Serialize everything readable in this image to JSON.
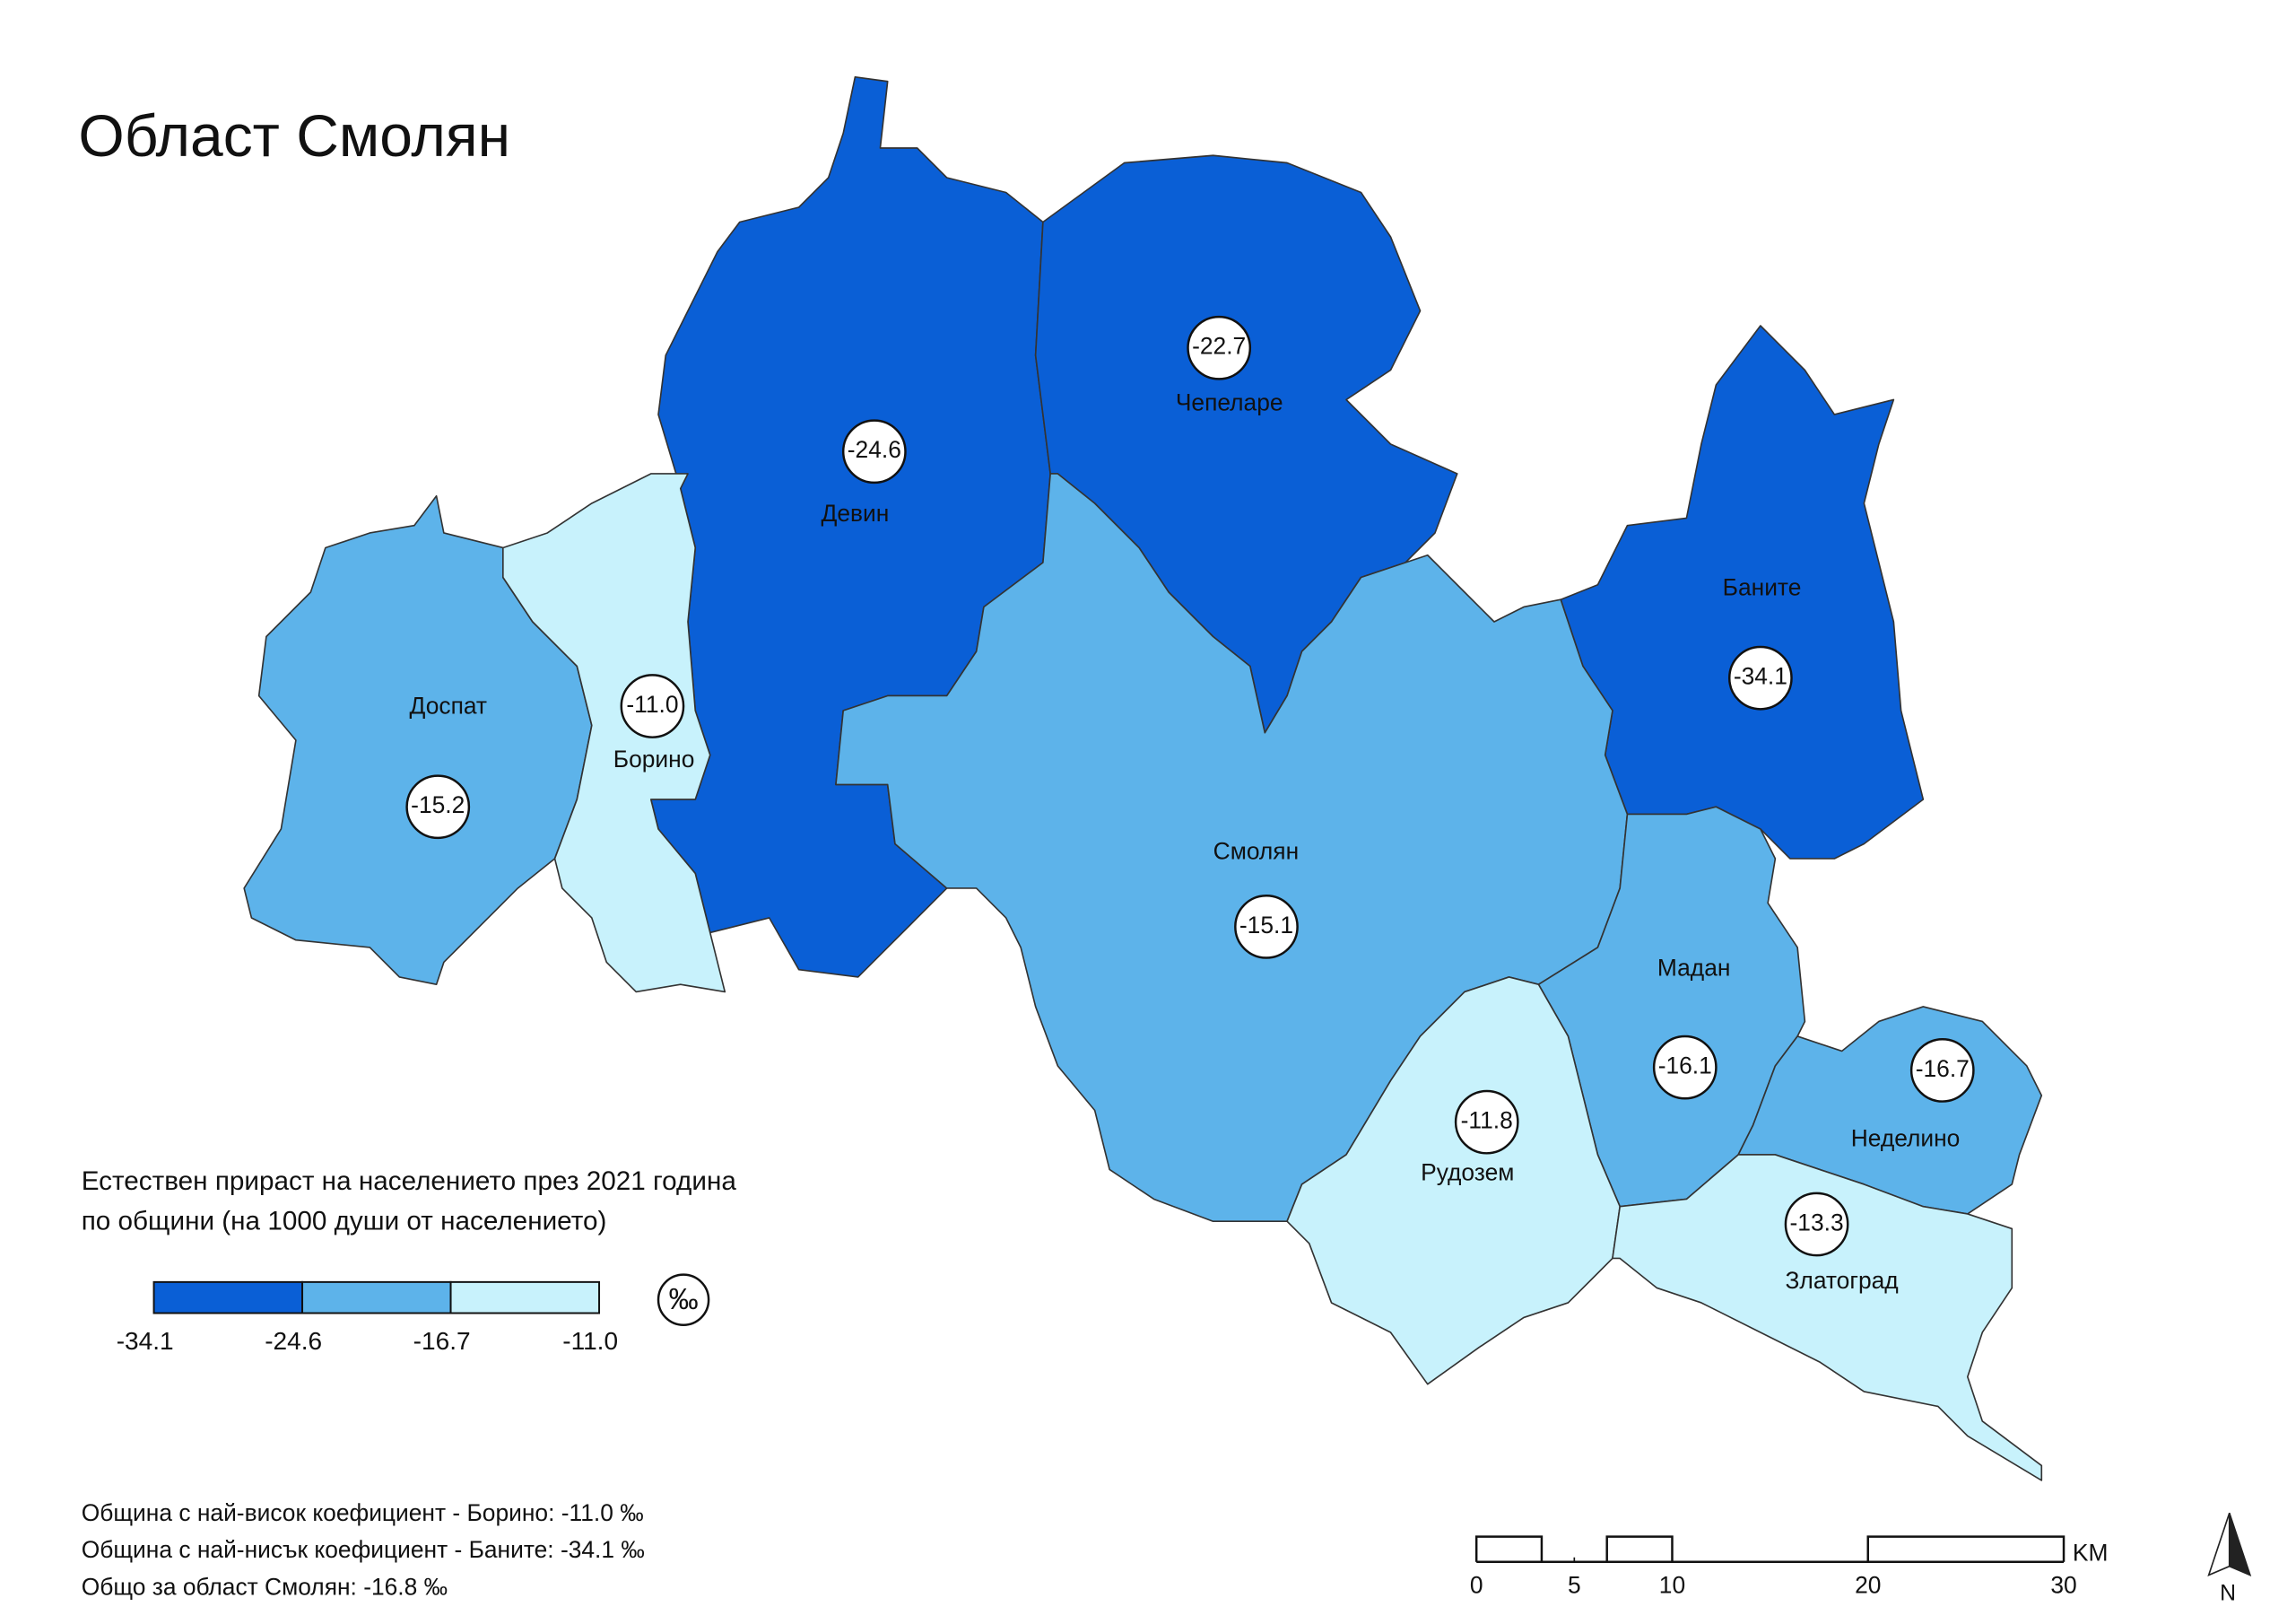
{
  "title": "Област Смолян",
  "regions": [
    {
      "name": "Девин",
      "value": -24.6,
      "label": "-24.6",
      "color": "#0a5fd6"
    },
    {
      "name": "Чепеларе",
      "value": -22.7,
      "label": "-22.7",
      "color": "#0a5fd6"
    },
    {
      "name": "Баните",
      "value": -34.1,
      "label": "-34.1",
      "color": "#0a5fd6"
    },
    {
      "name": "Смолян",
      "value": -15.1,
      "label": "-15.1",
      "color": "#5db3ea"
    },
    {
      "name": "Доспат",
      "value": -15.2,
      "label": "-15.2",
      "color": "#5db3ea"
    },
    {
      "name": "Борино",
      "value": -11,
      "label": "-11.0",
      "color": "#c8f2fc"
    },
    {
      "name": "Мадан",
      "value": -16.1,
      "label": "-16.1",
      "color": "#5db3ea"
    },
    {
      "name": "Неделино",
      "value": -16.7,
      "label": "-16.7",
      "color": "#5db3ea"
    },
    {
      "name": "Рудозем",
      "value": -11.8,
      "label": "-11.8",
      "color": "#c8f2fc"
    },
    {
      "name": "Златоград",
      "value": -13.3,
      "label": "-13.3",
      "color": "#c8f2fc"
    }
  ],
  "legend": {
    "title_lines": [
      "Естествен прираст на населението през 2021 година",
      "по общини (на 1000 души от населението)"
    ],
    "breaks": [
      {
        "value": -34.1,
        "label": "-34.1"
      },
      {
        "value": -24.6,
        "label": "-24.6"
      },
      {
        "value": -16.7,
        "label": "-16.7"
      },
      {
        "value": -11,
        "label": "-11.0"
      }
    ],
    "colors": [
      "#0a5fd6",
      "#5db3ea",
      "#c8f2fc"
    ],
    "unit": "‰"
  },
  "notes": [
    "Община с най-висок коефициент - Борино:  -11.0 ‰",
    "Община с най-нисък коефициент - Баните:  -34.1 ‰",
    "Общо за област Смолян:  -16.8 ‰"
  ],
  "scale_bar": {
    "ticks": [
      0,
      5,
      10,
      20,
      30
    ],
    "unit": "KM"
  },
  "north": "N"
}
